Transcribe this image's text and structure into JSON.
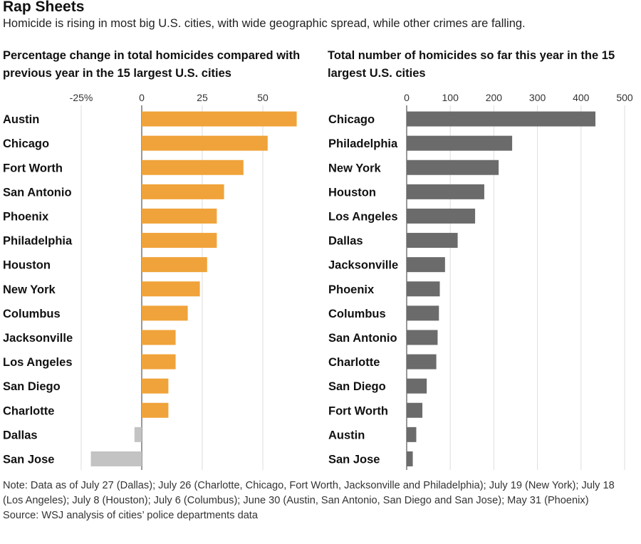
{
  "title": "Rap Sheets",
  "subtitle": "Homicide is rising in most big U.S. cities, with wide geographic spread, while other crimes are falling.",
  "note": "Note: Data as of July 27 (Dallas); July 26 (Charlotte, Chicago, Fort Worth, Jacksonville and Philadelphia); July 19 (New York); July 18 (Los Angeles); July 8 (Houston); July 6 (Columbus); June 30 (Austin, San Antonio, San Diego and San Jose); May 31 (Phoenix)",
  "source": "Source: WSJ analysis of cities’ police departments data",
  "colors": {
    "increase": "#f0a33a",
    "decrease": "#c3c3c3",
    "total": "#6b6b6b",
    "grid": "#dddddd",
    "zero": "#555555"
  },
  "chart_data": [
    {
      "type": "bar",
      "orientation": "horizontal",
      "title": "Percentage change in total homicides compared with previous year in the 15 largest U.S. cities",
      "categories": [
        "Austin",
        "Chicago",
        "Fort Worth",
        "San Antonio",
        "Phoenix",
        "Philadelphia",
        "Houston",
        "New York",
        "Columbus",
        "Jacksonville",
        "Los Angeles",
        "San Diego",
        "Charlotte",
        "Dallas",
        "San Jose"
      ],
      "values": [
        64,
        52,
        42,
        34,
        31,
        31,
        27,
        24,
        19,
        14,
        14,
        11,
        11,
        -3,
        -21
      ],
      "xlim": [
        -25,
        64
      ],
      "ticks": [
        -25,
        0,
        25,
        50
      ],
      "tick_labels": [
        "-25%",
        "0",
        "25",
        "50"
      ],
      "grid": true
    },
    {
      "type": "bar",
      "orientation": "horizontal",
      "title": "Total number of homicides so far this year in the 15 largest U.S. cities",
      "categories": [
        "Chicago",
        "Philadelphia",
        "New York",
        "Houston",
        "Los Angeles",
        "Dallas",
        "Jacksonville",
        "Phoenix",
        "Columbus",
        "San Antonio",
        "Charlotte",
        "San Diego",
        "Fort Worth",
        "Austin",
        "San Jose"
      ],
      "values": [
        433,
        242,
        211,
        178,
        157,
        117,
        88,
        76,
        74,
        71,
        68,
        46,
        36,
        22,
        14
      ],
      "xlim": [
        0,
        500
      ],
      "ticks": [
        0,
        100,
        200,
        300,
        400,
        500
      ],
      "tick_labels": [
        "0",
        "100",
        "200",
        "300",
        "400",
        "500"
      ],
      "grid": true
    }
  ]
}
